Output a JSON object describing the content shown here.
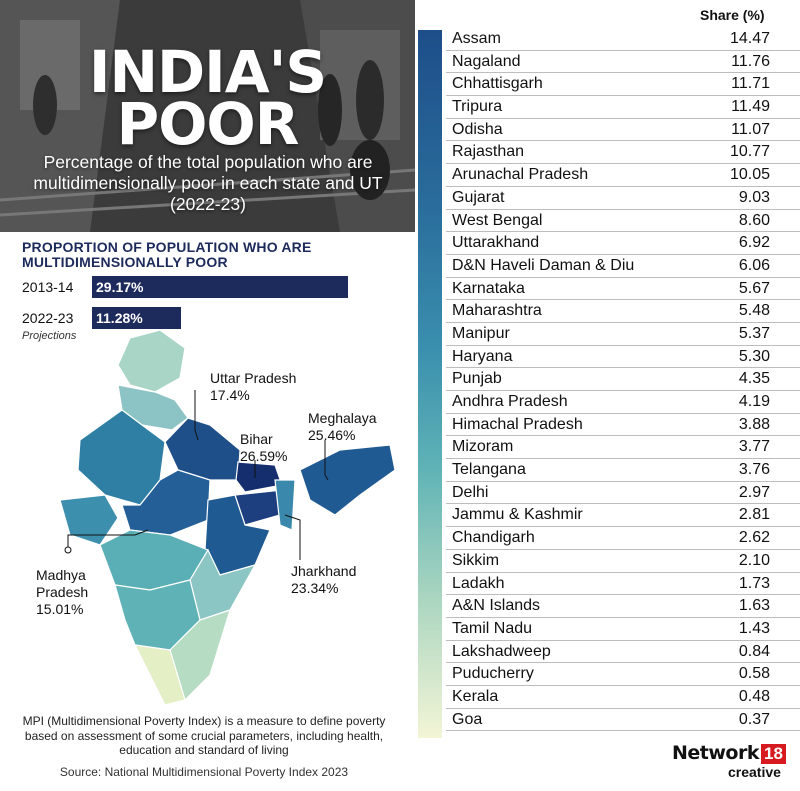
{
  "header": {
    "title_line1": "INDIA'S",
    "title_line2": "POOR",
    "subtitle": "Percentage of the total population who are multidimensionally poor in each state and UT (2022-23)"
  },
  "proportion": {
    "title": "PROPORTION OF POPULATION WHO ARE MULTIDIMENSIONALLY POOR",
    "rows": [
      {
        "year": "2013-14",
        "label": "29.17%",
        "value": 29.17
      },
      {
        "year": "2022-23",
        "label": "11.28%",
        "value": 11.28
      }
    ],
    "note": "Projections"
  },
  "map_callouts": [
    {
      "state": "Uttar Pradesh",
      "value": "17.4%"
    },
    {
      "state": "Bihar",
      "value": "26.59%"
    },
    {
      "state": "Meghalaya",
      "value": "25.46%"
    },
    {
      "state": "Madhya Pradesh",
      "state_line1": "Madhya",
      "state_line2": "Pradesh",
      "value": "15.01%"
    },
    {
      "state": "Jharkhand",
      "value": "23.34%"
    }
  ],
  "footer": {
    "note": "MPI (Multidimensional Poverty Index) is a measure to define poverty based on assessment of some crucial parameters, including health, education and standard of living",
    "source": "Source: National Multidimensional Poverty Index 2023"
  },
  "logo": {
    "network": "Network",
    "number": "18",
    "creative": "creative"
  },
  "colors": {
    "navy": "#1c2a5c",
    "brand_red": "#d71920"
  },
  "chart_data": {
    "type": "table",
    "column_header": "Share (%)",
    "rows": [
      {
        "state": "Assam",
        "share": 14.47,
        "share_text": "14.47"
      },
      {
        "state": "Nagaland",
        "share": 11.76,
        "share_text": "11.76"
      },
      {
        "state": "Chhattisgarh",
        "share": 11.71,
        "share_text": "11.71"
      },
      {
        "state": "Tripura",
        "share": 11.49,
        "share_text": "11.49"
      },
      {
        "state": "Odisha",
        "share": 11.07,
        "share_text": "11.07"
      },
      {
        "state": "Rajasthan",
        "share": 10.77,
        "share_text": "10.77"
      },
      {
        "state": "Arunachal Pradesh",
        "share": 10.05,
        "share_text": "10.05"
      },
      {
        "state": "Gujarat",
        "share": 9.03,
        "share_text": "9.03"
      },
      {
        "state": "West Bengal",
        "share": 8.6,
        "share_text": "8.60"
      },
      {
        "state": "Uttarakhand",
        "share": 6.92,
        "share_text": "6.92"
      },
      {
        "state": "D&N Haveli Daman & Diu",
        "share": 6.06,
        "share_text": "6.06"
      },
      {
        "state": "Karnataka",
        "share": 5.67,
        "share_text": "5.67"
      },
      {
        "state": "Maharashtra",
        "share": 5.48,
        "share_text": "5.48"
      },
      {
        "state": "Manipur",
        "share": 5.37,
        "share_text": "5.37"
      },
      {
        "state": "Haryana",
        "share": 5.3,
        "share_text": "5.30"
      },
      {
        "state": "Punjab",
        "share": 4.35,
        "share_text": "4.35"
      },
      {
        "state": "Andhra Pradesh",
        "share": 4.19,
        "share_text": "4.19"
      },
      {
        "state": "Himachal Pradesh",
        "share": 3.88,
        "share_text": "3.88"
      },
      {
        "state": "Mizoram",
        "share": 3.77,
        "share_text": "3.77"
      },
      {
        "state": "Telangana",
        "share": 3.76,
        "share_text": "3.76"
      },
      {
        "state": "Delhi",
        "share": 2.97,
        "share_text": "2.97"
      },
      {
        "state": "Jammu & Kashmir",
        "share": 2.81,
        "share_text": "2.81"
      },
      {
        "state": "Chandigarh",
        "share": 2.62,
        "share_text": "2.62"
      },
      {
        "state": "Sikkim",
        "share": 2.1,
        "share_text": "2.10"
      },
      {
        "state": "Ladakh",
        "share": 1.73,
        "share_text": "1.73"
      },
      {
        "state": "A&N Islands",
        "share": 1.63,
        "share_text": "1.63"
      },
      {
        "state": "Tamil Nadu",
        "share": 1.43,
        "share_text": "1.43"
      },
      {
        "state": "Lakshadweep",
        "share": 0.84,
        "share_text": "0.84"
      },
      {
        "state": "Puducherry",
        "share": 0.58,
        "share_text": "0.58"
      },
      {
        "state": "Kerala",
        "share": 0.48,
        "share_text": "0.48"
      },
      {
        "state": "Goa",
        "share": 0.37,
        "share_text": "0.37"
      }
    ]
  }
}
